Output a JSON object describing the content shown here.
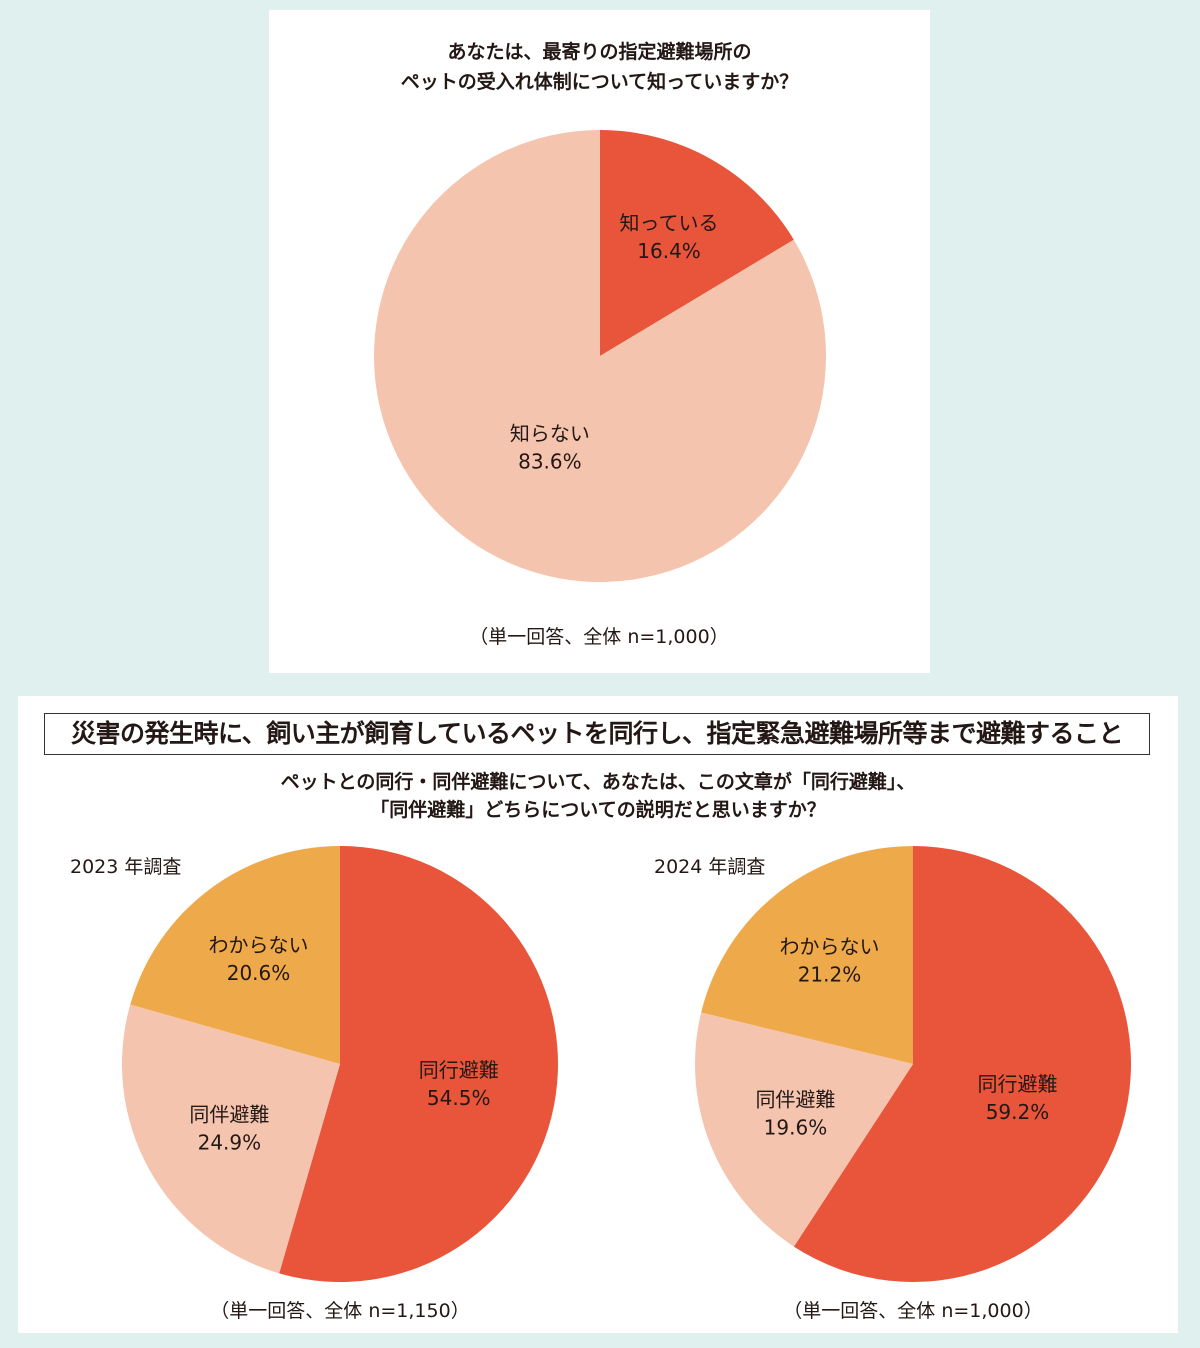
{
  "chart_data": [
    {
      "type": "pie",
      "title_lines": [
        "あなたは、最寄りの指定避難場所の",
        "ペットの受入れ体制について知っていますか？"
      ],
      "note": "（単一回答、全体 n=1,000）",
      "slices": [
        {
          "label": "知っている",
          "value": 16.4,
          "display": "16.4%",
          "color": "#E8553A"
        },
        {
          "label": "知らない",
          "value": 83.6,
          "display": "83.6%",
          "color": "#F5C4AE"
        }
      ]
    },
    {
      "type": "pie",
      "subtitle": "2023 年調査",
      "note": "（単一回答、全体 n=1,150）",
      "slices": [
        {
          "label": "同行避難",
          "value": 54.5,
          "display": "54.5%",
          "color": "#E8553A"
        },
        {
          "label": "同伴避難",
          "value": 24.9,
          "display": "24.9%",
          "color": "#F5C4AE"
        },
        {
          "label": "わからない",
          "value": 20.6,
          "display": "20.6%",
          "color": "#EEAA4A"
        }
      ]
    },
    {
      "type": "pie",
      "subtitle": "2024 年調査",
      "note": "（単一回答、全体 n=1,000）",
      "slices": [
        {
          "label": "同行避難",
          "value": 59.2,
          "display": "59.2%",
          "color": "#E8553A"
        },
        {
          "label": "同伴避難",
          "value": 19.6,
          "display": "19.6%",
          "color": "#F5C4AE"
        },
        {
          "label": "わからない",
          "value": 21.2,
          "display": "21.2%",
          "color": "#EEAA4A"
        }
      ]
    }
  ],
  "section2": {
    "definition": "災害の発生時に、飼い主が飼育しているペットを同行し、指定緊急避難場所等まで避難すること",
    "question_lines": [
      "ペットとの同行・同伴避難について、あなたは、この文章が「同行避難」、",
      "「同伴避難」どちらについての説明だと思いますか？"
    ]
  },
  "colors": {
    "background": "#E0F0EE",
    "panel": "#FFFFFF"
  }
}
